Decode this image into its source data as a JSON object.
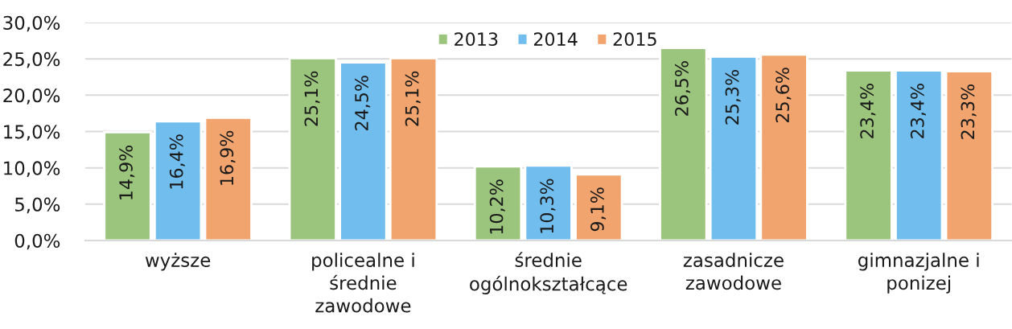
{
  "chart_data": {
    "type": "bar",
    "categories": [
      "wyższe",
      "policealne i\nśrednie\nzawodowe",
      "średnie\nogólnokształcące",
      "zasadnicze\nzawodowe",
      "gimnazjalne i\nponizej"
    ],
    "series": [
      {
        "name": "2013",
        "color": "#9bc47d",
        "values": [
          14.9,
          25.1,
          10.2,
          26.5,
          23.4
        ],
        "value_labels": [
          "14,9%",
          "25,1%",
          "10,2%",
          "26,5%",
          "23,4%"
        ]
      },
      {
        "name": "2014",
        "color": "#70bdee",
        "values": [
          16.4,
          24.5,
          10.3,
          25.3,
          23.4
        ],
        "value_labels": [
          "16,4%",
          "24,5%",
          "10,3%",
          "25,3%",
          "23,4%"
        ]
      },
      {
        "name": "2015",
        "color": "#f2a46f",
        "values": [
          16.9,
          25.1,
          9.1,
          25.6,
          23.3
        ],
        "value_labels": [
          "16,9%",
          "25,1%",
          "9,1%",
          "25,6%",
          "23,3%"
        ]
      }
    ],
    "ylim": [
      0,
      30
    ],
    "yticks": [
      {
        "value": 0,
        "label": "0,0%"
      },
      {
        "value": 5,
        "label": "5,0%"
      },
      {
        "value": 10,
        "label": "10,0%"
      },
      {
        "value": 15,
        "label": "15,0%"
      },
      {
        "value": 20,
        "label": "20,0%"
      },
      {
        "value": 25,
        "label": "25,0%"
      },
      {
        "value": 30,
        "label": "30,0%"
      }
    ],
    "grid": "y",
    "legend": "top"
  }
}
